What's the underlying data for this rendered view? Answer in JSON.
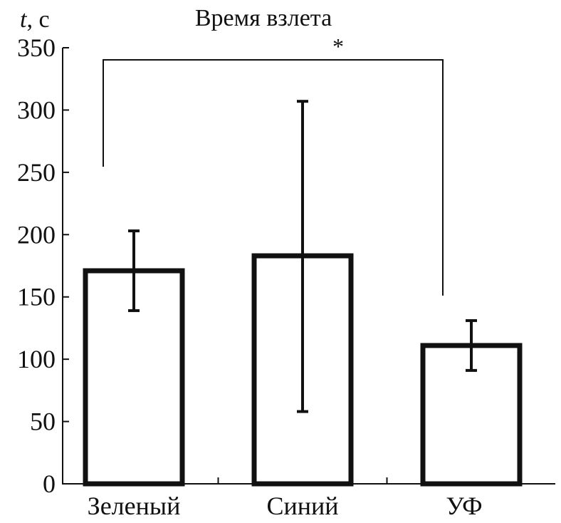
{
  "chart_data": {
    "type": "bar",
    "title": "Время взлета",
    "ylabel_italic": "t",
    "ylabel_unit": ", с",
    "xlabel": "",
    "categories": [
      "Зеленый",
      "Синий",
      "УФ"
    ],
    "values": [
      171,
      183,
      111
    ],
    "error_upper": [
      203,
      307,
      131
    ],
    "error_lower": [
      139,
      58,
      91
    ],
    "ylim": [
      0,
      350
    ],
    "yticks": [
      0,
      50,
      100,
      150,
      200,
      250,
      300,
      350
    ],
    "grid": false,
    "significance": {
      "from": "Зеленый",
      "to": "УФ",
      "label": "*"
    },
    "colors": {
      "bar_fill": "#ffffff",
      "bar_stroke": "#111111"
    }
  }
}
